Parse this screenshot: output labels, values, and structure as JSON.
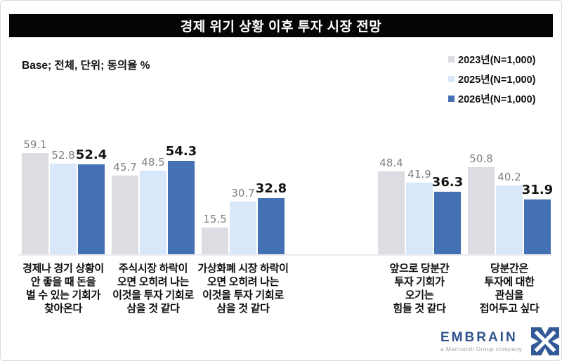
{
  "title": "경제 위기 상황 이후 투자 시장 전망",
  "base_note": "Base; 전체, 단위; 동의율 %",
  "legend": [
    {
      "label": "2023년(N=1,000)",
      "color": "#dcdce2"
    },
    {
      "label": "2025년(N=1,000)",
      "color": "#d8e8fa"
    },
    {
      "label": "2026년(N=1,000)",
      "color": "#4470b4"
    }
  ],
  "colors": {
    "bar_2023": "#dcdce2",
    "bar_2025": "#d8e8fa",
    "bar_2026": "#4470b4",
    "logo_blue": "#31538c"
  },
  "chart_data": {
    "type": "bar",
    "title": "경제 위기 상황 이후 투자 시장 전망",
    "ylabel": "동의율 %",
    "ylim": [
      0,
      72
    ],
    "grid": false,
    "legend_position": "top-right",
    "series_names": [
      "2023년",
      "2025년",
      "2026년"
    ],
    "groups": [
      {
        "panel": "left",
        "category_lines": [
          "경제나 경기 상황이",
          "안 좋을 때 돈을",
          "벌 수 있는 기회가",
          "찾아온다"
        ],
        "values": [
          59.1,
          52.8,
          52.4
        ]
      },
      {
        "panel": "left",
        "category_lines": [
          "주식시장 하락이",
          "오면 오히려 나는",
          "이것을 투자 기회로",
          "삼을 것 같다"
        ],
        "values": [
          45.7,
          48.5,
          54.3
        ]
      },
      {
        "panel": "left",
        "category_lines": [
          "가상화폐 시장 하락이",
          "오면 오히려 나는",
          "이것을 투자 기회로",
          "삼을 것 같다"
        ],
        "values": [
          15.5,
          30.7,
          32.8
        ]
      },
      {
        "panel": "right",
        "category_lines": [
          "앞으로 당분간",
          "투자 기회가",
          "오기는",
          "힘들 것 같다"
        ],
        "values": [
          48.4,
          41.9,
          36.3
        ]
      },
      {
        "panel": "right",
        "category_lines": [
          "당분간은",
          "투자에 대한",
          "관심을",
          "접어두고 싶다"
        ],
        "values": [
          50.8,
          40.2,
          31.9
        ]
      }
    ]
  },
  "logo": {
    "name": "EMBRAIN",
    "tagline": "a Macromill Group company"
  }
}
